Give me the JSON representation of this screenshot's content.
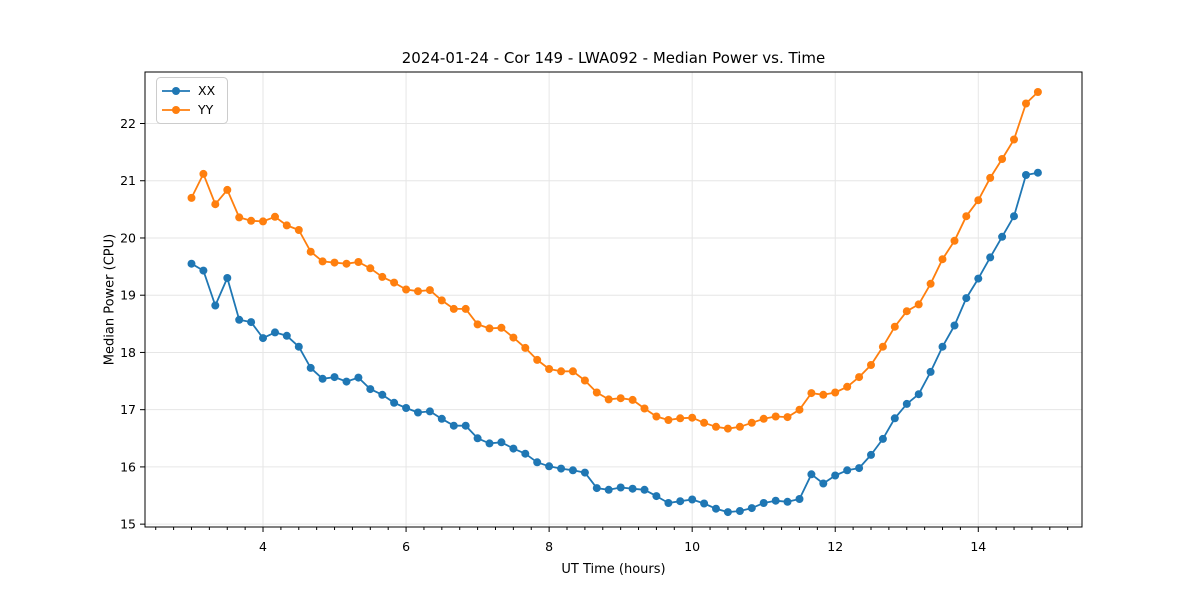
{
  "chart_data": {
    "type": "line",
    "title": "2024-01-24 - Cor 149 - LWA092 - Median Power vs. Time",
    "xlabel": "UT Time (hours)",
    "ylabel": "Median Power (CPU)",
    "xlim": [
      2.35,
      15.45
    ],
    "ylim": [
      14.95,
      22.9
    ],
    "x_major_ticks": [
      4,
      6,
      8,
      10,
      12,
      14
    ],
    "x_minor_tick_step": 0.25,
    "y_major_ticks": [
      15,
      16,
      17,
      18,
      19,
      20,
      21,
      22
    ],
    "grid": true,
    "grid_color": "#e6e6e6",
    "spine_color": "#000000",
    "legend_position": "upper-left",
    "marker": "circle",
    "x": [
      3.0,
      3.167,
      3.333,
      3.5,
      3.667,
      3.833,
      4.0,
      4.167,
      4.333,
      4.5,
      4.667,
      4.833,
      5.0,
      5.167,
      5.333,
      5.5,
      5.667,
      5.833,
      6.0,
      6.167,
      6.333,
      6.5,
      6.667,
      6.833,
      7.0,
      7.167,
      7.333,
      7.5,
      7.667,
      7.833,
      8.0,
      8.167,
      8.333,
      8.5,
      8.667,
      8.833,
      9.0,
      9.167,
      9.333,
      9.5,
      9.667,
      9.833,
      10.0,
      10.167,
      10.333,
      10.5,
      10.667,
      10.833,
      11.0,
      11.167,
      11.333,
      11.5,
      11.667,
      11.833,
      12.0,
      12.167,
      12.333,
      12.5,
      12.667,
      12.833,
      13.0,
      13.167,
      13.333,
      13.5,
      13.667,
      13.833,
      14.0,
      14.167,
      14.333,
      14.5,
      14.667,
      14.833
    ],
    "series": [
      {
        "name": "XX",
        "color": "#1f77b4",
        "values": [
          19.55,
          19.43,
          18.82,
          19.3,
          18.57,
          18.53,
          18.25,
          18.35,
          18.29,
          18.1,
          17.73,
          17.54,
          17.57,
          17.49,
          17.56,
          17.36,
          17.26,
          17.12,
          17.03,
          16.95,
          16.97,
          16.84,
          16.72,
          16.72,
          16.5,
          16.41,
          16.43,
          16.32,
          16.23,
          16.08,
          16.01,
          15.97,
          15.94,
          15.9,
          15.63,
          15.6,
          15.64,
          15.62,
          15.6,
          15.49,
          15.37,
          15.4,
          15.43,
          15.36,
          15.27,
          15.21,
          15.23,
          15.28,
          15.37,
          15.41,
          15.39,
          15.44,
          15.87,
          15.71,
          15.85,
          15.94,
          15.98,
          16.21,
          16.49,
          16.85,
          17.1,
          17.27,
          17.66,
          18.1,
          18.47,
          18.95,
          19.29,
          19.66,
          20.02,
          20.38,
          21.1,
          21.14
        ]
      },
      {
        "name": "YY",
        "color": "#ff7f0e",
        "values": [
          20.7,
          21.12,
          20.59,
          20.84,
          20.36,
          20.3,
          20.29,
          20.37,
          20.22,
          20.14,
          19.76,
          19.59,
          19.57,
          19.55,
          19.58,
          19.47,
          19.32,
          19.22,
          19.1,
          19.07,
          19.09,
          18.91,
          18.76,
          18.76,
          18.49,
          18.42,
          18.43,
          18.26,
          18.08,
          17.87,
          17.71,
          17.67,
          17.67,
          17.51,
          17.3,
          17.18,
          17.2,
          17.17,
          17.02,
          16.88,
          16.82,
          16.85,
          16.86,
          16.77,
          16.7,
          16.67,
          16.7,
          16.77,
          16.84,
          16.88,
          16.87,
          17.0,
          17.29,
          17.26,
          17.3,
          17.4,
          17.57,
          17.78,
          18.1,
          18.45,
          18.72,
          18.84,
          19.2,
          19.63,
          19.95,
          20.38,
          20.66,
          21.05,
          21.38,
          21.72,
          22.35,
          22.55
        ]
      }
    ]
  }
}
